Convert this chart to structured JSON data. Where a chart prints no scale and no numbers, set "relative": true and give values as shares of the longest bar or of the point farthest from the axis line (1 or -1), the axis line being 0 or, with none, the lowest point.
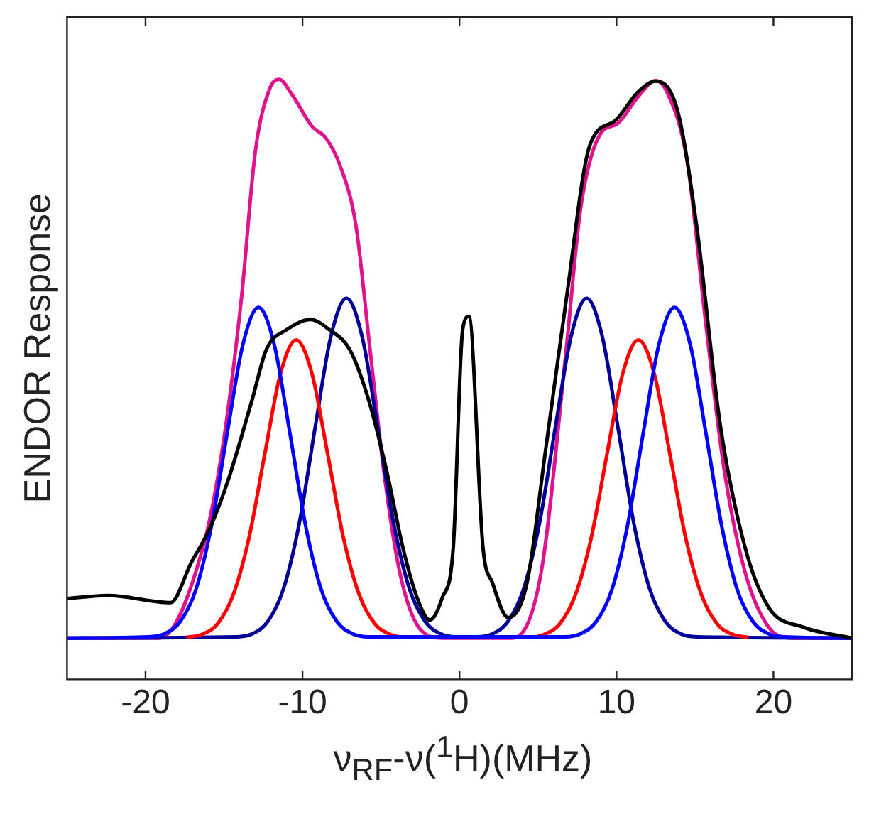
{
  "chart_data": {
    "type": "line",
    "xlabel": "ν$_{RF}$-ν($^{1}$H)(MHz)",
    "ylabel": "ENDOR Response",
    "relative": true,
    "xlim": [
      -25,
      25
    ],
    "xticks": [
      -20,
      -10,
      0,
      10,
      20
    ],
    "grid": false,
    "legend": false,
    "marker": "none",
    "line_style": "solid",
    "series": [
      {
        "color": "#000000",
        "x": [
          -25,
          -22.4,
          -18.4,
          -17.1,
          -15.9,
          -14.7,
          -13.2,
          -12.3,
          -11.0,
          -9.5,
          -8.3,
          -7.0,
          -5.8,
          -4.6,
          -3.6,
          -2.7,
          -1.9,
          -1.1,
          -0.4,
          0.2,
          0.6,
          1.5,
          2.1,
          3.1,
          4.3,
          5.5,
          6.8,
          8.3,
          9.9,
          11.4,
          12.5,
          13.9,
          15.1,
          16.6,
          18.2,
          19.7,
          21.9,
          25
        ],
        "values": [
          0.135,
          0.14,
          0.128,
          0.194,
          0.252,
          0.335,
          0.467,
          0.55,
          0.583,
          0.6,
          0.583,
          0.55,
          0.467,
          0.343,
          0.219,
          0.136,
          0.099,
          0.136,
          0.219,
          0.583,
          0.605,
          0.219,
          0.161,
          0.103,
          0.161,
          0.385,
          0.633,
          0.89,
          0.931,
          0.98,
          0.997,
          0.947,
          0.757,
          0.426,
          0.219,
          0.12,
          0.087,
          0.069
        ]
      },
      {
        "color": "#0000ff",
        "x": [
          -25,
          -19.8,
          -18.8,
          -17.8,
          -16.8,
          -15.8,
          -14.8,
          -13.8,
          -12.8,
          -11.8,
          -10.8,
          -9.8,
          -8.8,
          -7.8,
          -6.8,
          -5.8,
          6.7,
          7.7,
          8.7,
          9.7,
          10.7,
          11.7,
          12.7,
          13.7,
          14.7,
          15.7,
          16.7,
          17.7,
          18.7,
          19.7,
          20.7,
          25
        ],
        "values": [
          0.069,
          0.071,
          0.076,
          0.096,
          0.149,
          0.256,
          0.41,
          0.558,
          0.62,
          0.558,
          0.41,
          0.256,
          0.149,
          0.096,
          0.076,
          0.071,
          0.071,
          0.076,
          0.096,
          0.149,
          0.256,
          0.41,
          0.558,
          0.62,
          0.558,
          0.41,
          0.256,
          0.149,
          0.096,
          0.076,
          0.071,
          0.069
        ]
      },
      {
        "color": "#ff0000",
        "x": [
          -17.4,
          -16.4,
          -15.4,
          -14.4,
          -13.4,
          -12.4,
          -11.4,
          -10.4,
          -9.4,
          -8.4,
          -7.4,
          -6.4,
          -5.4,
          -4.4,
          -3.4,
          4.4,
          5.4,
          6.4,
          7.4,
          8.4,
          9.4,
          10.4,
          11.4,
          12.4,
          13.4,
          14.4,
          15.4,
          16.4,
          17.4,
          18.4
        ],
        "values": [
          0.07,
          0.075,
          0.093,
          0.142,
          0.237,
          0.376,
          0.51,
          0.566,
          0.51,
          0.376,
          0.237,
          0.142,
          0.093,
          0.075,
          0.07,
          0.07,
          0.075,
          0.093,
          0.142,
          0.237,
          0.376,
          0.51,
          0.566,
          0.51,
          0.376,
          0.237,
          0.142,
          0.093,
          0.075,
          0.07
        ]
      },
      {
        "color": "#000099",
        "x": [
          -25,
          -14.2,
          -13.2,
          -12.2,
          -11.2,
          -10.2,
          -9.2,
          -8.2,
          -7.2,
          -6.2,
          -5.2,
          -4.2,
          -3.2,
          -2.2,
          -1.2,
          -0.2,
          1.1,
          2.1,
          3.1,
          4.1,
          5.1,
          6.1,
          7.1,
          8.1,
          9.1,
          10.1,
          11.1,
          12.1,
          13.1,
          14.1,
          15.1,
          25
        ],
        "values": [
          0.069,
          0.071,
          0.076,
          0.097,
          0.152,
          0.261,
          0.419,
          0.571,
          0.635,
          0.571,
          0.419,
          0.261,
          0.152,
          0.097,
          0.076,
          0.071,
          0.071,
          0.076,
          0.097,
          0.152,
          0.261,
          0.419,
          0.571,
          0.635,
          0.571,
          0.419,
          0.261,
          0.152,
          0.097,
          0.076,
          0.071,
          0.069
        ]
      },
      {
        "color": "#e0138f",
        "x": [
          -25,
          -19.1,
          -16.35,
          -15.1,
          -13.9,
          -13.0,
          -12.1,
          -11.5,
          -10.6,
          -9.4,
          -8.5,
          -7.6,
          -6.6,
          -5.7,
          -4.8,
          -3.8,
          -2.6,
          -1.1,
          3.4,
          5.2,
          6.8,
          7.7,
          8.9,
          10.1,
          11.4,
          12.5,
          13.2,
          14.5,
          15.7,
          16.9,
          18.2,
          19.7,
          21.2,
          25
        ],
        "values": [
          0.069,
          0.069,
          0.219,
          0.385,
          0.633,
          0.881,
          0.984,
          1.0,
          0.972,
          0.922,
          0.902,
          0.856,
          0.757,
          0.55,
          0.343,
          0.178,
          0.087,
          0.069,
          0.069,
          0.178,
          0.55,
          0.782,
          0.906,
          0.927,
          0.972,
          0.998,
          0.98,
          0.864,
          0.591,
          0.343,
          0.178,
          0.087,
          0.069,
          0.069
        ]
      }
    ]
  }
}
